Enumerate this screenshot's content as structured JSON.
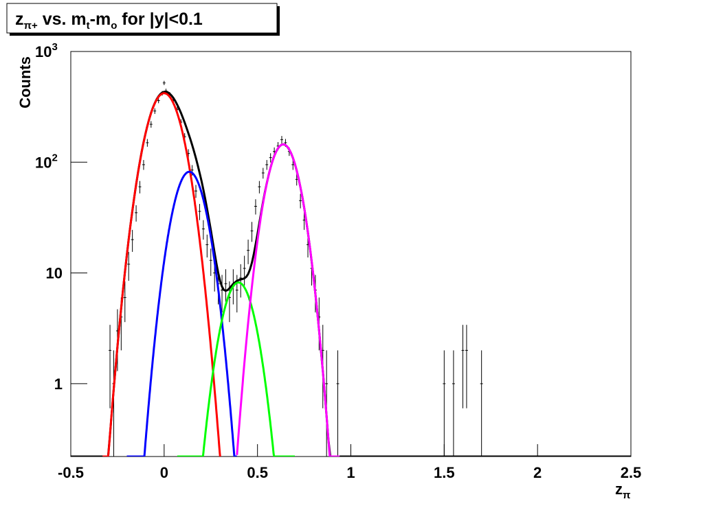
{
  "chart_data": {
    "type": "histogram-fit",
    "title": [
      {
        "text": "z"
      },
      {
        "text": "π+",
        "sub": true
      },
      {
        "text": " vs. m"
      },
      {
        "text": "t",
        "sub": true
      },
      {
        "text": "-m"
      },
      {
        "text": "o",
        "sub": true
      },
      {
        "text": " for |y|<0.1"
      }
    ],
    "xlabel": [
      {
        "text": "z"
      },
      {
        "text": "π",
        "sub": true
      }
    ],
    "ylabel": "Counts",
    "log_y": true,
    "xlim": [
      -0.5,
      2.5
    ],
    "ylim": [
      0.22,
      1000
    ],
    "xticks": [
      -0.5,
      0,
      0.5,
      1,
      1.5,
      2,
      2.5
    ],
    "yticks": [
      1,
      10,
      {
        "value": 100,
        "label": "10",
        "exponent": "2"
      },
      {
        "value": 1000,
        "label": "10",
        "exponent": "3"
      }
    ],
    "x": [
      -0.29,
      -0.27,
      -0.25,
      -0.23,
      -0.21,
      -0.19,
      -0.17,
      -0.15,
      -0.13,
      -0.11,
      -0.09,
      -0.07,
      -0.05,
      -0.03,
      -0.01,
      0.0,
      0.01,
      0.03,
      0.05,
      0.07,
      0.09,
      0.11,
      0.13,
      0.15,
      0.17,
      0.19,
      0.21,
      0.23,
      0.25,
      0.27,
      0.29,
      0.31,
      0.33,
      0.35,
      0.37,
      0.39,
      0.41,
      0.43,
      0.45,
      0.47,
      0.49,
      0.51,
      0.53,
      0.55,
      0.57,
      0.59,
      0.61,
      0.63,
      0.65,
      0.67,
      0.69,
      0.71,
      0.73,
      0.75,
      0.77,
      0.79,
      0.81,
      0.83,
      0.85,
      0.87,
      0.93,
      1.5,
      1.55,
      1.6,
      1.62,
      1.7
    ],
    "values": [
      2,
      1,
      3,
      4,
      6,
      12,
      20,
      35,
      60,
      95,
      150,
      220,
      290,
      360,
      420,
      520,
      440,
      410,
      370,
      300,
      230,
      170,
      120,
      85,
      55,
      36,
      25,
      18,
      13,
      10,
      8,
      7,
      8,
      6,
      8,
      7,
      9,
      11,
      16,
      24,
      40,
      60,
      80,
      95,
      110,
      125,
      140,
      160,
      150,
      125,
      95,
      70,
      45,
      30,
      18,
      11,
      7,
      4,
      2,
      1,
      1,
      1,
      1,
      2,
      2,
      1
    ],
    "errors": [
      1.4,
      1,
      1.7,
      2,
      2.4,
      3.5,
      4.5,
      5.9,
      7.7,
      9.7,
      12,
      15,
      17,
      19,
      20,
      23,
      21,
      20,
      19,
      17,
      15,
      13,
      11,
      9.2,
      7.4,
      6,
      5,
      4.2,
      3.6,
      3.2,
      2.8,
      2.6,
      2.8,
      2.4,
      2.8,
      2.6,
      3,
      3.3,
      4,
      4.9,
      6.3,
      7.7,
      8.9,
      9.7,
      10.5,
      11,
      12,
      12.6,
      12.2,
      11,
      9.7,
      8.4,
      6.7,
      5.5,
      4.2,
      3.3,
      2.6,
      2,
      1.4,
      1,
      1,
      1,
      1,
      1.4,
      1.4,
      1
    ],
    "color": "#000000",
    "total_fit": {
      "color": "#000000",
      "range": [
        -0.5,
        2.5
      ]
    },
    "fits": [
      {
        "color": "#ff0000",
        "amplitude": 420,
        "mean": 0.0,
        "sigma": 0.077,
        "range": [
          -0.33,
          0.3
        ]
      },
      {
        "color": "#0000ff",
        "amplitude": 82,
        "mean": 0.135,
        "sigma": 0.07,
        "range": [
          -0.2,
          0.39
        ]
      },
      {
        "color": "#00ff00",
        "amplitude": 8.2,
        "mean": 0.398,
        "sigma": 0.0706,
        "range": [
          0.07,
          0.7
        ]
      },
      {
        "color": "#ff00ff",
        "amplitude": 145,
        "mean": 0.638,
        "sigma": 0.069,
        "range": [
          0.39,
          0.94
        ]
      }
    ]
  }
}
